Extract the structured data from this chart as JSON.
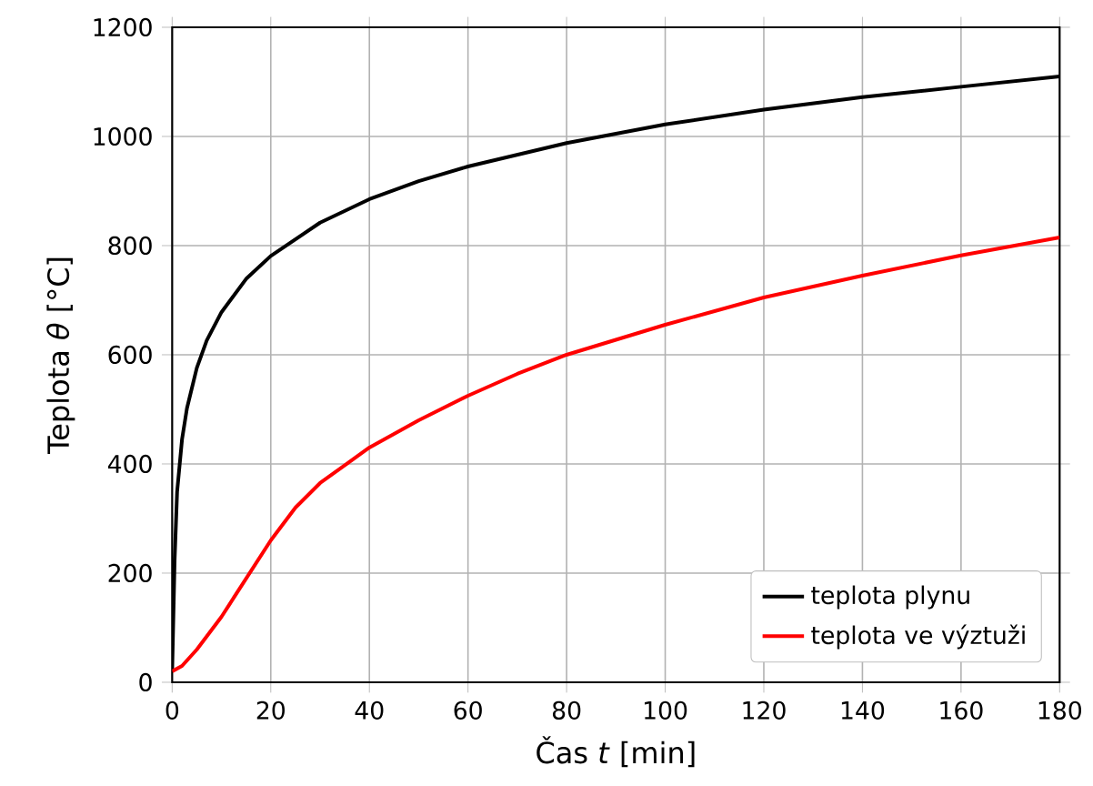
{
  "chart_data": {
    "type": "line",
    "xlabel": "Čas *t* [min]",
    "ylabel": "Teplota *θ* [°C]",
    "xlim": [
      0,
      180
    ],
    "ylim": [
      0,
      1200
    ],
    "xticks": [
      0,
      20,
      40,
      60,
      80,
      100,
      120,
      140,
      160,
      180
    ],
    "yticks": [
      0,
      200,
      400,
      600,
      800,
      1000,
      1200
    ],
    "grid": true,
    "legend": "bottom right",
    "line_style": "solid",
    "marker": "none",
    "series": [
      {
        "name": "teplota plynu",
        "color": "#000000",
        "x": [
          0,
          0.5,
          1,
          2,
          3,
          5,
          7,
          10,
          15,
          20,
          30,
          40,
          50,
          60,
          80,
          100,
          120,
          140,
          160,
          180
        ],
        "values": [
          20,
          225,
          349,
          445,
          502,
          576,
          626,
          678,
          739,
          781,
          842,
          885,
          918,
          945,
          988,
          1022,
          1049,
          1072,
          1091,
          1110
        ]
      },
      {
        "name": "teplota ve výztuži",
        "color": "#ff0000",
        "x": [
          0,
          2,
          5,
          10,
          15,
          20,
          25,
          30,
          40,
          50,
          60,
          70,
          80,
          100,
          120,
          140,
          160,
          180
        ],
        "values": [
          20,
          30,
          60,
          120,
          190,
          260,
          320,
          365,
          430,
          480,
          525,
          565,
          600,
          655,
          705,
          745,
          782,
          815
        ]
      }
    ]
  }
}
